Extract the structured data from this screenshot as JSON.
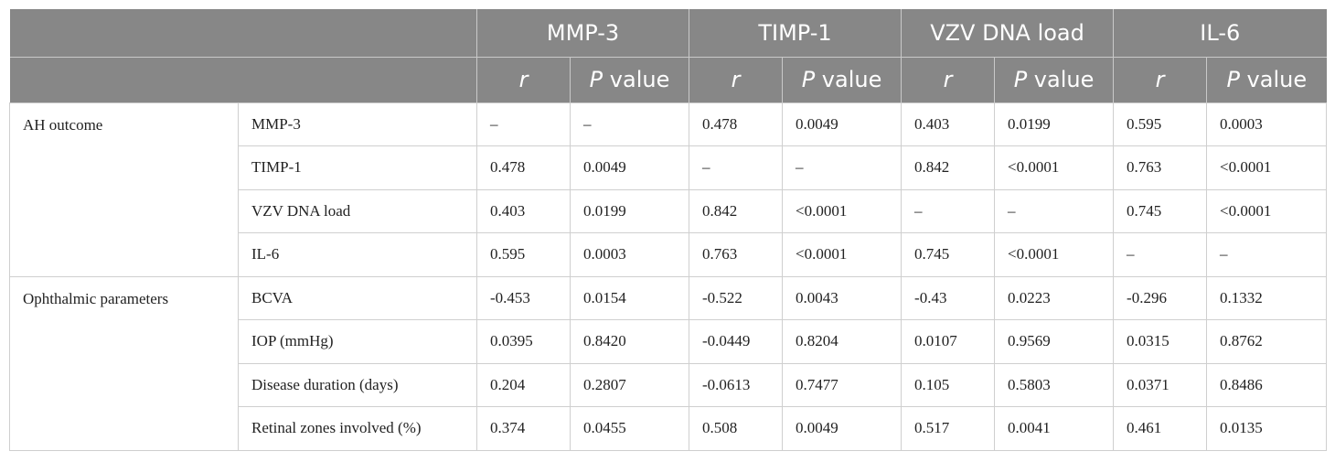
{
  "columns": [
    {
      "label": "MMP-3"
    },
    {
      "label": "TIMP-1"
    },
    {
      "label": "VZV DNA load"
    },
    {
      "label": "IL-6"
    }
  ],
  "subheaders": {
    "r": "r",
    "p_italic": "P",
    "p_rest": " value"
  },
  "groups": [
    {
      "label": "AH outcome",
      "rows": [
        {
          "label": "MMP-3",
          "values": [
            "–",
            "–",
            "0.478",
            "0.0049",
            "0.403",
            "0.0199",
            "0.595",
            "0.0003"
          ]
        },
        {
          "label": "TIMP-1",
          "values": [
            "0.478",
            "0.0049",
            "–",
            "–",
            "0.842",
            "<0.0001",
            "0.763",
            "<0.0001"
          ]
        },
        {
          "label": "VZV DNA load",
          "values": [
            "0.403",
            "0.0199",
            "0.842",
            "<0.0001",
            "–",
            "–",
            "0.745",
            "<0.0001"
          ]
        },
        {
          "label": "IL-6",
          "values": [
            "0.595",
            "0.0003",
            "0.763",
            "<0.0001",
            "0.745",
            "<0.0001",
            "–",
            "–"
          ]
        }
      ]
    },
    {
      "label": "Ophthalmic parameters",
      "rows": [
        {
          "label": "BCVA",
          "values": [
            "-0.453",
            "0.0154",
            "-0.522",
            "0.0043",
            "-0.43",
            "0.0223",
            "-0.296",
            "0.1332"
          ]
        },
        {
          "label": "IOP (mmHg)",
          "values": [
            "0.0395",
            "0.8420",
            "-0.0449",
            "0.8204",
            "0.0107",
            "0.9569",
            "0.0315",
            "0.8762"
          ]
        },
        {
          "label": "Disease duration (days)",
          "values": [
            "0.204",
            "0.2807",
            "-0.0613",
            "0.7477",
            "0.105",
            "0.5803",
            "0.0371",
            "0.8486"
          ]
        },
        {
          "label": "Retinal zones involved (%)",
          "values": [
            "0.374",
            "0.0455",
            "0.508",
            "0.0049",
            "0.517",
            "0.0041",
            "0.461",
            "0.0135"
          ]
        }
      ]
    }
  ],
  "colors": {
    "header_bg": "#878787",
    "header_text": "#ffffff",
    "rule": "#cfcfcf"
  }
}
